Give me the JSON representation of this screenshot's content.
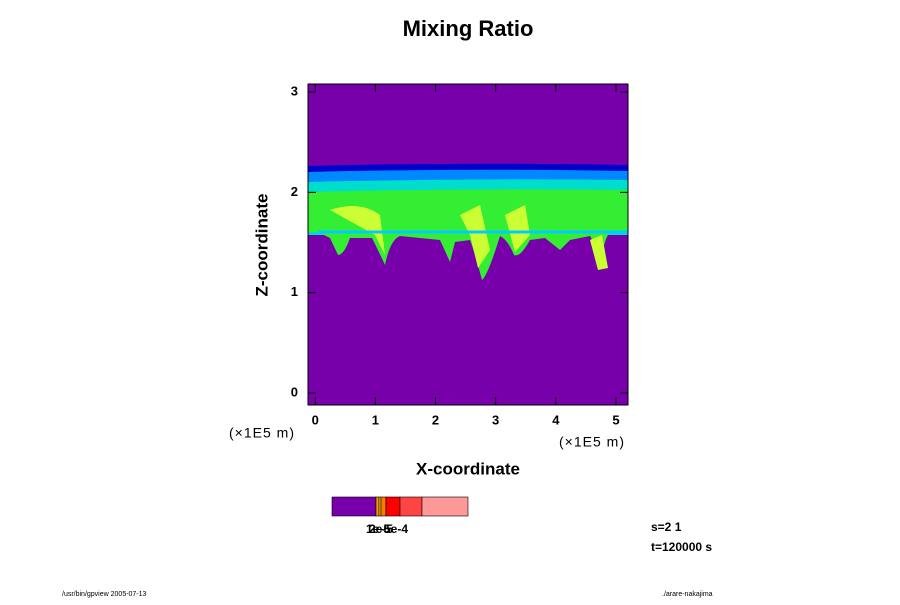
{
  "chart_data": {
    "type": "contour",
    "title": "Mixing Ratio",
    "x_label": "X-coordinate",
    "y_label": "Z-coordinate",
    "x_unit": "(×1E5 m)",
    "y_unit": "(×1E5 m)",
    "xlim": [
      -0.12,
      5.2
    ],
    "ylim": [
      -0.12,
      3.08
    ],
    "xticks": [
      0,
      1,
      2,
      3,
      4,
      5
    ],
    "yticks": [
      0,
      1,
      2,
      3
    ],
    "colorbar": {
      "colors": [
        "#7700aa",
        "#ff9900",
        "#ffcc00",
        "#ff7700",
        "#ff0000",
        "#ff4444",
        "#ff9999"
      ],
      "labels": [
        "1e-5",
        "2e-5",
        "5e-4"
      ]
    },
    "annotations": [
      "s=2 1",
      "t=120000 s"
    ],
    "footer_left": "/usr/bin/gpview 2005-07-13",
    "footer_right": "./arare-nakajima"
  }
}
